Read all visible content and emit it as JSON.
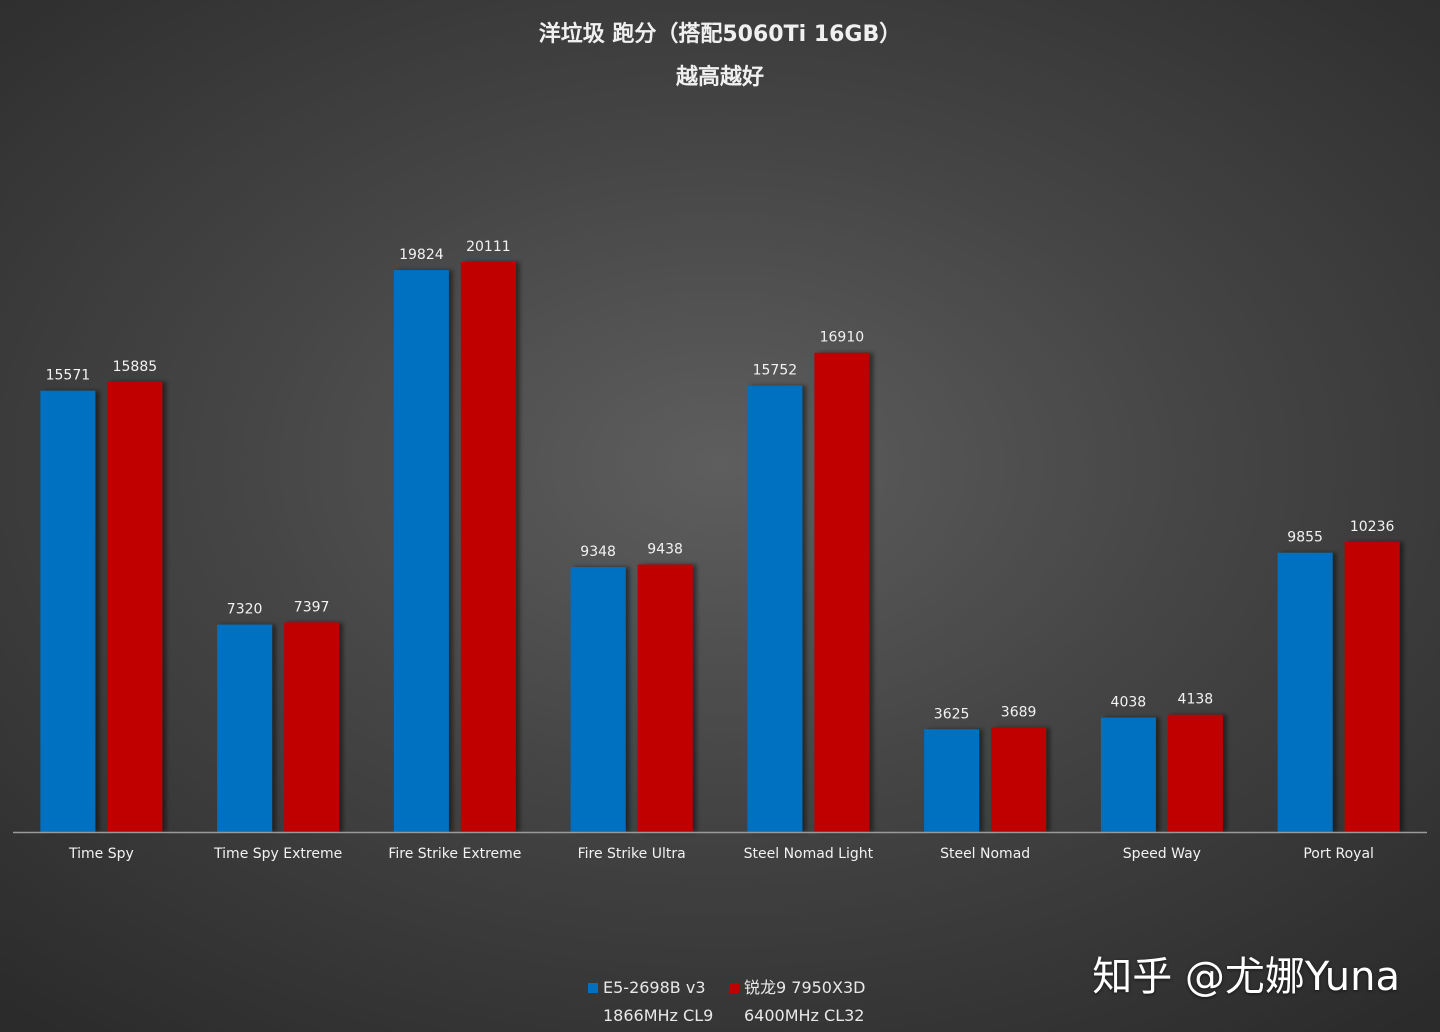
{
  "chart_data": {
    "type": "bar",
    "title": "洋垃圾 跑分（搭配5060Ti 16GB）",
    "subtitle": "越高越好",
    "categories": [
      "Time Spy",
      "Time Spy Extreme",
      "Fire Strike Extreme",
      "Fire Strike Ultra",
      "Steel Nomad Light",
      "Steel Nomad",
      "Speed Way",
      "Port Royal"
    ],
    "series": [
      {
        "name": "E5-2698B v3",
        "detail": "1866MHz CL9",
        "color": "#0070c0",
        "values": [
          15571,
          7320,
          19824,
          9348,
          15752,
          3625,
          4038,
          9855
        ]
      },
      {
        "name": "锐龙9 7950X3D",
        "detail": "6400MHz CL32",
        "color": "#c00000",
        "values": [
          15885,
          7397,
          20111,
          9438,
          16910,
          3689,
          4138,
          10236
        ]
      }
    ],
    "ylim": [
      0,
      20111
    ],
    "grid": false,
    "data_labels": true,
    "legend_position": "bottom"
  },
  "watermark": "知乎 @尤娜Yuna"
}
